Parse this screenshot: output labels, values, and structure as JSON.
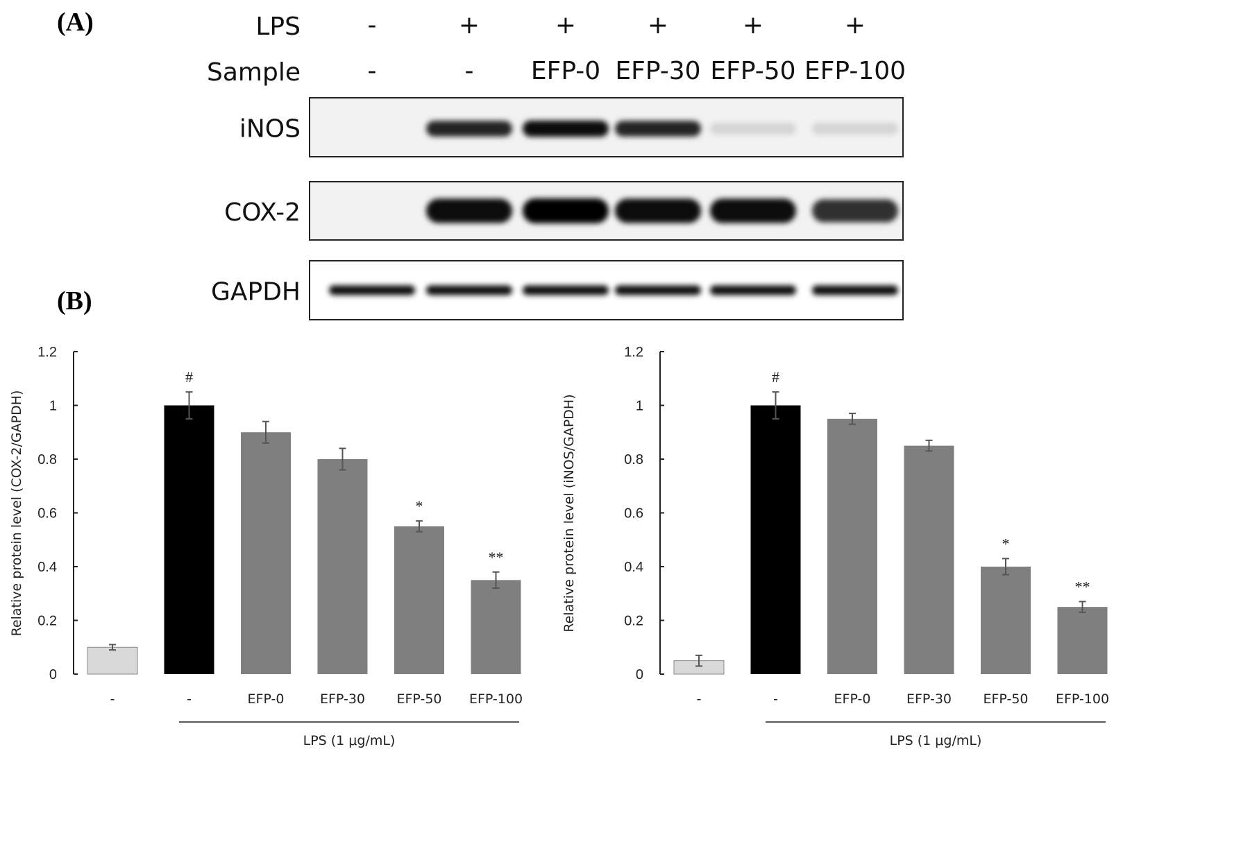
{
  "panels": {
    "a": "(A)",
    "b": "(B)"
  },
  "blot": {
    "row_labels": {
      "lps": "LPS",
      "sample": "Sample"
    },
    "lps": [
      "-",
      "+",
      "+",
      "+",
      "+",
      "+"
    ],
    "sample": [
      "-",
      "-",
      "EFP-0",
      "EFP-30",
      "EFP-50",
      "EFP-100"
    ],
    "proteins": [
      {
        "name": "iNOS",
        "band_intensity": [
          0,
          0.85,
          0.95,
          0.85,
          0.12,
          0.12
        ]
      },
      {
        "name": "COX-2",
        "band_intensity": [
          0,
          0.95,
          1,
          0.95,
          0.95,
          0.8
        ]
      },
      {
        "name": "GAPDH",
        "band_intensity": [
          0.95,
          0.95,
          0.95,
          0.95,
          0.95,
          0.95
        ]
      }
    ]
  },
  "chart_data": [
    {
      "type": "bar",
      "ylabel": "Relative protein level (COX-2/GAPDH)",
      "ylim": [
        0,
        1.2
      ],
      "yticks": [
        "0",
        "0.2",
        "0.4",
        "0.6",
        "0.8",
        "1",
        "1.2"
      ],
      "categories": [
        "-",
        "-",
        "EFP-0",
        "EFP-30",
        "EFP-50",
        "EFP-100"
      ],
      "values": [
        0.1,
        1.0,
        0.9,
        0.8,
        0.55,
        0.35
      ],
      "errors": [
        0.01,
        0.05,
        0.04,
        0.04,
        0.02,
        0.03
      ],
      "annotations": [
        "",
        "#",
        "",
        "",
        "*",
        "**"
      ],
      "bar_colors": [
        "#d9d9d9",
        "#000000",
        "#7f7f7f",
        "#7f7f7f",
        "#7f7f7f",
        "#7f7f7f"
      ],
      "group_label": "LPS (1 μg/mL)"
    },
    {
      "type": "bar",
      "ylabel": "Relative protein level (iNOS/GAPDH)",
      "ylim": [
        0,
        1.2
      ],
      "yticks": [
        "0",
        "0.2",
        "0.4",
        "0.6",
        "0.8",
        "1",
        "1.2"
      ],
      "categories": [
        "-",
        "-",
        "EFP-0",
        "EFP-30",
        "EFP-50",
        "EFP-100"
      ],
      "values": [
        0.05,
        1.0,
        0.95,
        0.85,
        0.4,
        0.25
      ],
      "errors": [
        0.02,
        0.05,
        0.02,
        0.02,
        0.03,
        0.02
      ],
      "annotations": [
        "",
        "#",
        "",
        "",
        "*",
        "**"
      ],
      "bar_colors": [
        "#d9d9d9",
        "#000000",
        "#7f7f7f",
        "#7f7f7f",
        "#7f7f7f",
        "#7f7f7f"
      ],
      "group_label": "LPS (1 μg/mL)"
    }
  ]
}
